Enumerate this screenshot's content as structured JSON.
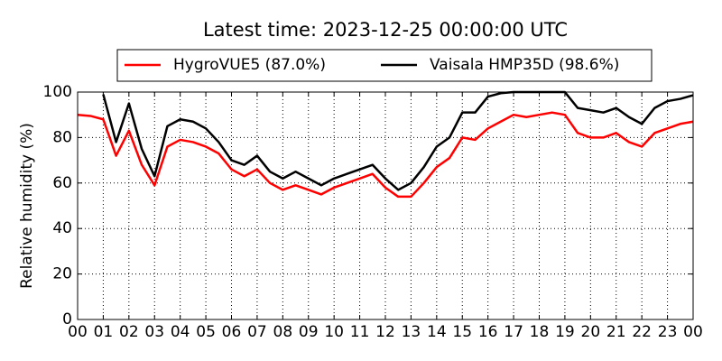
{
  "chart_data": {
    "type": "line",
    "title": "Latest time: 2023-12-25 00:00:00 UTC",
    "y_label": "Relative humidity (%)",
    "x": [
      0,
      0.5,
      1,
      1.5,
      2,
      2.5,
      3,
      3.5,
      4,
      4.5,
      5,
      5.5,
      6,
      6.5,
      7,
      7.5,
      8,
      8.5,
      9,
      9.5,
      10,
      10.5,
      11,
      11.5,
      12,
      12.5,
      13,
      13.5,
      14,
      14.5,
      15,
      15.5,
      16,
      16.5,
      17,
      17.5,
      18,
      18.5,
      19,
      19.5,
      20,
      20.5,
      21,
      21.5,
      22,
      22.5,
      23,
      23.5,
      24
    ],
    "series": [
      {
        "name": "HygroVUE5 (87.0%)",
        "color": "#ff0000",
        "values": [
          90,
          89.5,
          88,
          72,
          83,
          68,
          59,
          76,
          79,
          78,
          76,
          73,
          66,
          63,
          66,
          60,
          57,
          59,
          57,
          55,
          58,
          60,
          62,
          64,
          58,
          54,
          54,
          60,
          67,
          71,
          80,
          79,
          84,
          87,
          90,
          89,
          90,
          91,
          90,
          82,
          80,
          80,
          82,
          78,
          76,
          82,
          84,
          86,
          87
        ]
      },
      {
        "name": "Vaisala HMP35D (98.6%)",
        "color": "#000000",
        "values": [
          null,
          null,
          99,
          78,
          95,
          75,
          63,
          85,
          88,
          87,
          84,
          78,
          70,
          68,
          72,
          65,
          62,
          65,
          62,
          59,
          62,
          64,
          66,
          68,
          62,
          57,
          60,
          67,
          76,
          80,
          91,
          91,
          98,
          99.5,
          100,
          100,
          100,
          100,
          100,
          93,
          92,
          91,
          93,
          89,
          86,
          93,
          96,
          97,
          98.6
        ]
      }
    ],
    "xlim": [
      0,
      24
    ],
    "xticks": [
      {
        "value": 0,
        "label": "00"
      },
      {
        "value": 1,
        "label": "01"
      },
      {
        "value": 2,
        "label": "02"
      },
      {
        "value": 3,
        "label": "03"
      },
      {
        "value": 4,
        "label": "04"
      },
      {
        "value": 5,
        "label": "05"
      },
      {
        "value": 6,
        "label": "06"
      },
      {
        "value": 7,
        "label": "07"
      },
      {
        "value": 8,
        "label": "08"
      },
      {
        "value": 9,
        "label": "09"
      },
      {
        "value": 10,
        "label": "10"
      },
      {
        "value": 11,
        "label": "11"
      },
      {
        "value": 12,
        "label": "12"
      },
      {
        "value": 13,
        "label": "13"
      },
      {
        "value": 14,
        "label": "14"
      },
      {
        "value": 15,
        "label": "15"
      },
      {
        "value": 16,
        "label": "16"
      },
      {
        "value": 17,
        "label": "17"
      },
      {
        "value": 18,
        "label": "18"
      },
      {
        "value": 19,
        "label": "19"
      },
      {
        "value": 20,
        "label": "20"
      },
      {
        "value": 21,
        "label": "21"
      },
      {
        "value": 22,
        "label": "22"
      },
      {
        "value": 23,
        "label": "23"
      },
      {
        "value": 24,
        "label": "00"
      }
    ],
    "ylim": [
      0,
      100
    ],
    "yticks": [
      0,
      20,
      40,
      60,
      80,
      100
    ],
    "grid": true,
    "legend": "top"
  }
}
